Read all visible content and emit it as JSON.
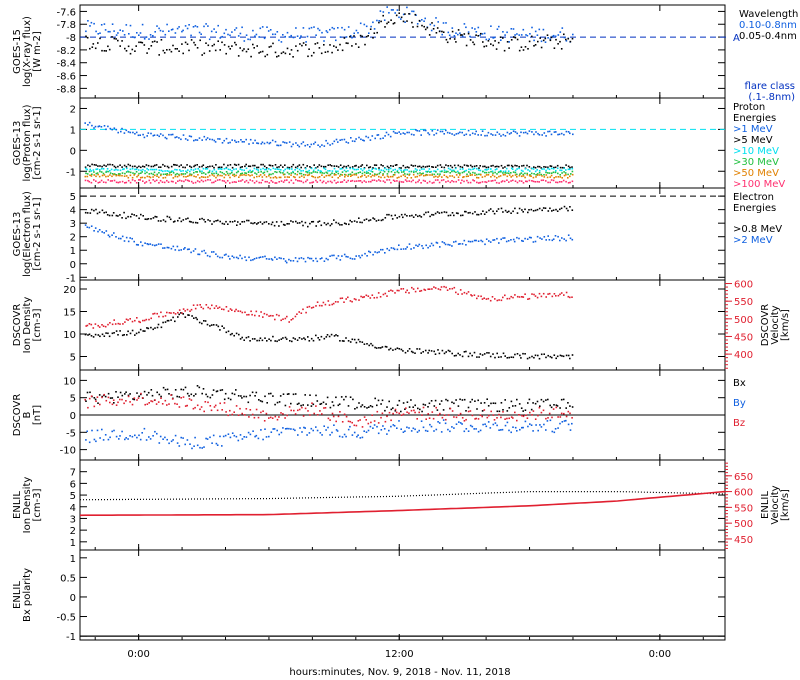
{
  "footer": {
    "xlabel": "hours:minutes, Nov.  9, 2018 - Nov. 11, 2018"
  },
  "x_axis": {
    "ticks": [
      "0:00",
      "12:00",
      "0:00"
    ],
    "tick_hours": [
      0,
      12,
      24
    ],
    "range_hours": [
      -2.7,
      27
    ]
  },
  "colors": {
    "black": "#000000",
    "blue": "#1060e0",
    "cyan": "#00e0f0",
    "green": "#20c040",
    "orange": "#e08000",
    "red": "#e02030",
    "pink": "#ff3070",
    "navy": "#0030c0"
  },
  "chart_data": [
    {
      "type": "scatter",
      "panel": "goes15-xray",
      "ylabel": [
        "GOES-15",
        "log(X-ray flux)",
        "[W m-2]"
      ],
      "ylim": [
        -8.95,
        -7.5
      ],
      "yticks": [
        -7.6,
        -7.8,
        -8.0,
        -8.2,
        -8.4,
        -8.6,
        -8.8
      ],
      "legend": {
        "title": "Wavelength",
        "entries": [
          "0.10-0.8nm",
          "0.05-0.4nm"
        ],
        "flare_class_label": [
          "flare class",
          "(.1-.8nm)"
        ],
        "flare_class_mark": "A"
      },
      "reference_line": -8.0,
      "series": [
        {
          "name": "0.10-0.8nm",
          "color": "blue",
          "x": [
            -2.5,
            0,
            3,
            6,
            9,
            10.5,
            11.5,
            12.5,
            14,
            17,
            20
          ],
          "y": [
            -7.85,
            -7.9,
            -7.9,
            -7.95,
            -7.95,
            -7.85,
            -7.6,
            -7.65,
            -7.85,
            -7.95,
            -7.95
          ]
        },
        {
          "name": "0.05-0.4nm",
          "color": "black",
          "x": [
            -2.5,
            0,
            3,
            6,
            9,
            10.5,
            11.5,
            12.5,
            14,
            17,
            20
          ],
          "y": [
            -8.05,
            -8.15,
            -8.15,
            -8.2,
            -8.15,
            -8.0,
            -7.65,
            -7.7,
            -7.95,
            -8.1,
            -8.05
          ]
        }
      ]
    },
    {
      "type": "scatter",
      "panel": "goes13-proton",
      "ylabel": [
        "GOES-13",
        "log(Proton flux)",
        "[cm-2 s-1 sr-1]"
      ],
      "ylim": [
        -1.8,
        2.5
      ],
      "yticks": [
        2,
        1,
        0,
        -1
      ],
      "legend": {
        "title": [
          "Proton",
          "Energies"
        ],
        "entries": [
          ">1 MeV",
          ">5 MeV",
          ">10 MeV",
          ">30 MeV",
          ">50 MeV",
          ">100 MeV"
        ]
      },
      "reference_line": 1,
      "series": [
        {
          "name": ">1 MeV",
          "color": "blue",
          "x": [
            -2.5,
            0,
            4,
            8,
            11,
            12,
            16,
            20
          ],
          "y": [
            1.3,
            0.8,
            0.5,
            0.3,
            0.7,
            0.9,
            0.85,
            0.85
          ]
        },
        {
          "name": ">5 MeV",
          "color": "black",
          "x": [
            -2.5,
            20
          ],
          "y": [
            -0.7,
            -0.75
          ]
        },
        {
          "name": ">10 MeV",
          "color": "cyan",
          "x": [
            -2.5,
            20
          ],
          "y": [
            -0.9,
            -0.9
          ]
        },
        {
          "name": ">30 MeV",
          "color": "green",
          "x": [
            -2.5,
            20
          ],
          "y": [
            -1.05,
            -1.05
          ]
        },
        {
          "name": ">50 MeV",
          "color": "orange",
          "x": [
            -2.5,
            20
          ],
          "y": [
            -1.2,
            -1.2
          ]
        },
        {
          "name": ">100 MeV",
          "color": "pink",
          "x": [
            -2.5,
            20
          ],
          "y": [
            -1.45,
            -1.45
          ]
        }
      ]
    },
    {
      "type": "scatter",
      "panel": "goes13-electron",
      "ylabel": [
        "GOES-13",
        "log(Electron flux)",
        "[cm-2 s-1 sr-1]"
      ],
      "ylim": [
        -1.2,
        5.6
      ],
      "yticks": [
        5,
        4,
        3,
        2,
        1,
        0,
        -1
      ],
      "legend": {
        "title": [
          "Electron",
          "Energies"
        ],
        "entries": [
          ">0.8 MeV",
          ">2 MeV"
        ]
      },
      "reference_line": 5,
      "series": [
        {
          "name": ">0.8 MeV",
          "color": "black",
          "x": [
            -2.5,
            0,
            4,
            8,
            10,
            12,
            16,
            20
          ],
          "y": [
            4.0,
            3.5,
            3.1,
            3.0,
            3.2,
            3.6,
            3.9,
            4.2
          ]
        },
        {
          "name": ">2 MeV",
          "color": "blue",
          "x": [
            -2.5,
            0,
            4,
            7,
            10,
            12,
            16,
            20
          ],
          "y": [
            2.8,
            1.6,
            0.6,
            0.3,
            0.6,
            1.3,
            1.7,
            2.0
          ]
        }
      ]
    },
    {
      "type": "scatter",
      "panel": "dscovr-plasma",
      "ylabel": [
        "DSCOVR",
        "Ion Density",
        "[cm-3]"
      ],
      "y2label": [
        "DSCOVR",
        "Velocity",
        "[km/s]"
      ],
      "ylim": [
        2,
        22
      ],
      "yticks": [
        20,
        15,
        10,
        5
      ],
      "y2lim": [
        355,
        610
      ],
      "y2ticks": [
        600,
        550,
        500,
        450,
        400
      ],
      "series": [
        {
          "name": "Ion Density",
          "color": "black",
          "x": [
            -2.5,
            0,
            1,
            2,
            3.5,
            5,
            7,
            9,
            12,
            16,
            20
          ],
          "y": [
            10,
            10.5,
            12,
            14.5,
            12,
            9,
            9,
            9.5,
            6.5,
            5.5,
            5
          ]
        },
        {
          "name": "Velocity",
          "color": "red",
          "axis": "y2",
          "x": [
            -2.5,
            0,
            3,
            5,
            7,
            8,
            10,
            12,
            14,
            16,
            20
          ],
          "y": [
            480,
            500,
            540,
            520,
            500,
            540,
            560,
            580,
            590,
            560,
            570
          ]
        }
      ]
    },
    {
      "type": "scatter",
      "panel": "dscovr-mag",
      "ylabel": [
        "DSCOVR",
        "B",
        "[nT]"
      ],
      "ylim": [
        -13,
        13
      ],
      "yticks": [
        10,
        5,
        0,
        -5,
        -10
      ],
      "legend": {
        "entries": [
          "Bx",
          "By",
          "Bz"
        ]
      },
      "reference_line": 0,
      "series": [
        {
          "name": "Bx",
          "color": "black",
          "x": [
            -2.5,
            0,
            3,
            6,
            9,
            12,
            16,
            20
          ],
          "y": [
            5,
            6,
            7,
            5,
            4,
            3,
            3,
            3
          ]
        },
        {
          "name": "By",
          "color": "blue",
          "x": [
            -2.5,
            0,
            2,
            4,
            6,
            8,
            10,
            12,
            16,
            20
          ],
          "y": [
            -6,
            -5,
            -8,
            -7,
            -5,
            -4,
            -5,
            -3,
            -3,
            -3
          ]
        },
        {
          "name": "Bz",
          "color": "red",
          "x": [
            -2.5,
            0,
            2,
            4,
            6,
            8,
            10,
            12,
            16,
            20
          ],
          "y": [
            4,
            5,
            4,
            2,
            0,
            2,
            -2,
            1,
            0,
            1
          ]
        }
      ]
    },
    {
      "type": "line",
      "panel": "enlil-plasma",
      "ylabel": [
        "ENLIL",
        "Ion Density",
        "[cm-3]"
      ],
      "y2label": [
        "ENLIL",
        "Velocity",
        "[km/s]"
      ],
      "ylim": [
        0.3,
        8
      ],
      "yticks": [
        7,
        6,
        5,
        4,
        3,
        2,
        1
      ],
      "y2lim": [
        415,
        700
      ],
      "y2ticks": [
        650,
        600,
        550,
        500,
        450
      ],
      "series": [
        {
          "name": "Ion Density",
          "color": "black",
          "x": [
            -2.7,
            6,
            12,
            18,
            22,
            27
          ],
          "y": [
            4.6,
            4.7,
            4.9,
            5.3,
            5.3,
            5.1
          ]
        },
        {
          "name": "Velocity",
          "color": "red",
          "axis": "y2",
          "x": [
            -2.7,
            6,
            12,
            18,
            22,
            27
          ],
          "y": [
            525,
            527,
            540,
            555,
            570,
            600
          ]
        }
      ]
    },
    {
      "type": "line",
      "panel": "enlil-polarity",
      "ylabel": [
        "ENLIL",
        "Bx polarity"
      ],
      "ylim": [
        -1.1,
        1.2
      ],
      "yticks": [
        1.0,
        0.5,
        0.0,
        -0.5,
        -1.0
      ],
      "series": [
        {
          "name": "Bx polarity",
          "color": "black",
          "x": [
            -2.7,
            27
          ],
          "y": [
            -1.0,
            -1.0
          ]
        }
      ]
    }
  ]
}
